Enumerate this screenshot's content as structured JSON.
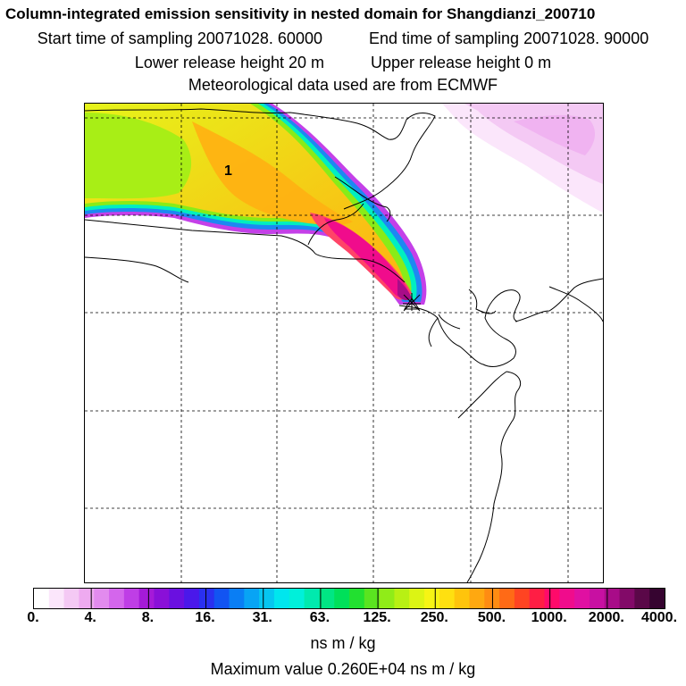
{
  "title": "Column-integrated emission sensitivity in nested domain for Shangdianzi_200710",
  "sampling": {
    "start_label": "Start time of sampling 20071028. 60000",
    "end_label": "End time of sampling 20071028. 90000"
  },
  "release": {
    "lower_label": "Lower release height   20 m",
    "upper_label": "Upper release height    0 m"
  },
  "met_label": "Meteorological data used are from ECMWF",
  "map": {
    "annotation": "1",
    "release_site_marker": "star-marker"
  },
  "colorbar": {
    "ticks": [
      "0.",
      "4.",
      "8.",
      "16.",
      "31.",
      "63.",
      "125.",
      "250.",
      "500.",
      "1000.",
      "2000.",
      "4000."
    ],
    "colors": [
      "#ffffff",
      "#fbe6fb",
      "#f4c9f4",
      "#eeaaf0",
      "#e28bee",
      "#d466ec",
      "#bf3ee6",
      "#a51ad8",
      "#8a10d8",
      "#6a10e0",
      "#4a18ea",
      "#2a30f0",
      "#1254f2",
      "#0a7ef4",
      "#08a4f4",
      "#06c6f0",
      "#00e6ee",
      "#00f0da",
      "#00eaae",
      "#00e684",
      "#00e05a",
      "#22e030",
      "#5ae420",
      "#90ec18",
      "#b8f014",
      "#dcf414",
      "#f6f414",
      "#ffe010",
      "#ffc40c",
      "#ffa810",
      "#ff8c12",
      "#ff6a16",
      "#ff4422",
      "#ff1e44",
      "#ff0a6a",
      "#f00c8c",
      "#e010a2",
      "#c810a2",
      "#a80c88",
      "#820a68",
      "#5a0848",
      "#360430"
    ]
  },
  "units_label": "ns m / kg",
  "max_label": "Maximum value  0.260E+04 ns m / kg"
}
